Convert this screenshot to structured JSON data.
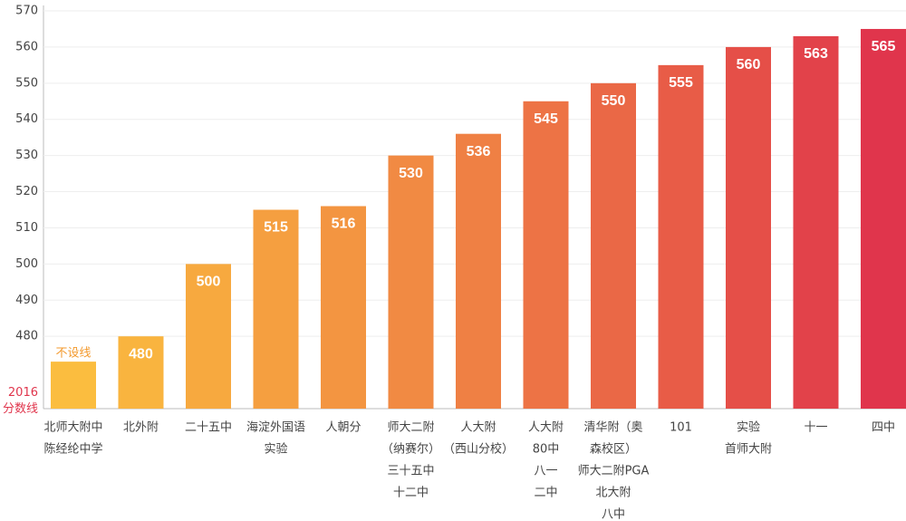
{
  "chart_data": {
    "type": "bar",
    "categories": [
      [
        "北师大附中",
        "陈经纶中学"
      ],
      [
        "北外附"
      ],
      [
        "二十五中"
      ],
      [
        "海淀外国语",
        "实验"
      ],
      [
        "人朝分"
      ],
      [
        "师大二附",
        "（纳赛尔）",
        "三十五中",
        "十二中"
      ],
      [
        "人大附",
        "（西山分校）"
      ],
      [
        "人大附",
        "80中",
        "八一",
        "二中"
      ],
      [
        "清华附（奥",
        "森校区）",
        "师大二附PGA",
        "北大附",
        "八中"
      ],
      [
        "101"
      ],
      [
        "实验",
        "首师大附"
      ],
      [
        "十一"
      ],
      [
        "四中"
      ]
    ],
    "values": [
      473,
      480,
      500,
      515,
      516,
      530,
      536,
      545,
      550,
      555,
      560,
      563,
      565
    ],
    "value_labels": [
      "不设线",
      "480",
      "500",
      "515",
      "516",
      "530",
      "536",
      "545",
      "550",
      "555",
      "560",
      "563",
      "565"
    ],
    "colors": [
      "#fbbd3f",
      "#f9b43f",
      "#f7a93f",
      "#f59f40",
      "#f39541",
      "#f18a43",
      "#ef8044",
      "#ed7345",
      "#ea6846",
      "#e85c47",
      "#e54f48",
      "#e2424a",
      "#e0354c"
    ],
    "value_label_colors": [
      "#f39a2e",
      "#ffffff",
      "#ffffff",
      "#ffffff",
      "#ffffff",
      "#ffffff",
      "#ffffff",
      "#ffffff",
      "#ffffff",
      "#ffffff",
      "#ffffff",
      "#ffffff",
      "#ffffff"
    ],
    "ylim": [
      460,
      570
    ],
    "yticks": [
      {
        "value": 460,
        "label": "2016 分数线"
      },
      480,
      490,
      500,
      510,
      520,
      530,
      540,
      550,
      560,
      570
    ],
    "ytick_colors": [
      "#e0354c",
      "#444444",
      "#444444",
      "#444444",
      "#444444",
      "#444444",
      "#444444",
      "#444444",
      "#444444",
      "#444444",
      "#444444"
    ],
    "grid": true
  }
}
